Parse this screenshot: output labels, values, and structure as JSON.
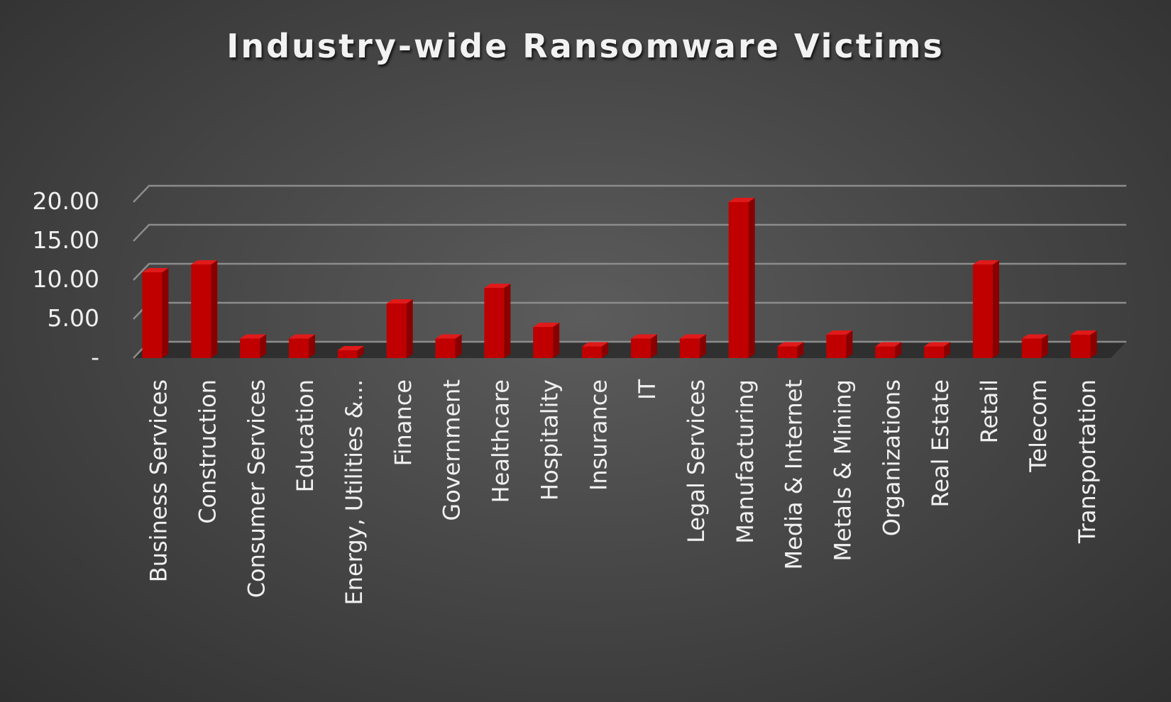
{
  "chart_data": {
    "type": "bar",
    "title": "Industry-wide Ransomware Victims",
    "xlabel": "",
    "ylabel": "",
    "ylim": [
      0,
      20
    ],
    "y_ticks": [
      "-",
      "5.00",
      "10.00",
      "15.00",
      "20.00"
    ],
    "grid": true,
    "style": "3d-column",
    "bar_color": "#c00000",
    "categories": [
      "Business Services",
      "Construction",
      "Consumer Services",
      "Education",
      "Energy, Utilities &...",
      "Finance",
      "Government",
      "Healthcare",
      "Hospitality",
      "Insurance",
      "IT",
      "Legal Services",
      "Manufacturing",
      "Media & Internet",
      "Metals & Mining",
      "Organizations",
      "Real Estate",
      "Retail",
      "Telecom",
      "Transportation"
    ],
    "values": [
      11,
      12,
      2.5,
      2.5,
      1,
      7,
      2.5,
      9,
      4,
      1.5,
      2.5,
      2.5,
      20,
      1.5,
      3,
      1.5,
      1.5,
      12,
      2.5,
      3
    ]
  }
}
